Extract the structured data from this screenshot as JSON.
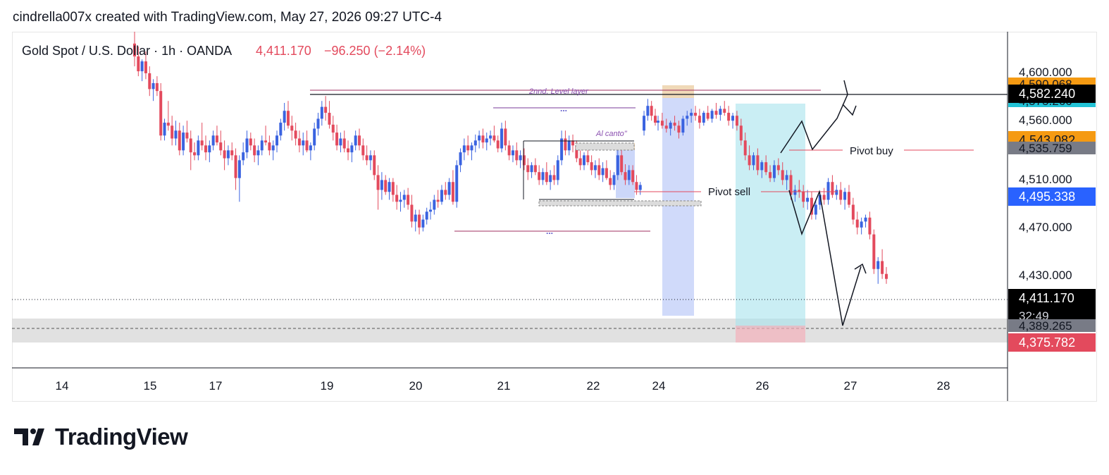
{
  "header": {
    "text": "cindrella007x created with TradingView.com, May 27, 2026 09:27 UTC-4"
  },
  "symbol": {
    "title": "Gold Spot / U.S. Dollar · 1h · OANDA",
    "price": "4,411.170",
    "change": "−96.250 (−2.14%)",
    "change_color": "#e34a5d"
  },
  "colors": {
    "up": "#3a63e0",
    "down": "#e34a5d",
    "axis_text": "#131722"
  },
  "brand": {
    "name": "TradingView",
    "icon": "tradingview-logo-icon"
  },
  "chart_data": {
    "type": "candlestick",
    "x_labels": [
      "14",
      "15",
      "17",
      "19",
      "20",
      "21",
      "22",
      "24",
      "26",
      "27",
      "28"
    ],
    "y_ticks": [
      "4,600.000",
      "4,560.000",
      "4,510.000",
      "4,470.000",
      "4,430.000"
    ],
    "ylim": [
      4320,
      4660
    ],
    "price_badges": [
      {
        "value": "4,590.068",
        "color": "#f59a12",
        "fg": "#131722",
        "partial": true
      },
      {
        "value": "4,575.266",
        "color": "#22c3d6",
        "fg": "#131722",
        "partial": true
      },
      {
        "value": "4,582.240",
        "color": "#000000",
        "fg": "#ffffff"
      },
      {
        "value": "4,543.082",
        "color": "#f59a12",
        "fg": "#131722"
      },
      {
        "value": "4,535.759",
        "color": "#787b86",
        "fg": "#131722",
        "partial": true
      },
      {
        "value": "4,495.338",
        "color": "#2962ff",
        "fg": "#ffffff"
      },
      {
        "value": "4,411.170",
        "color": "#000000",
        "fg": "#ffffff",
        "countdown": "32:49"
      },
      {
        "value": "4,389.265",
        "color": "#787b86",
        "fg": "#131722",
        "partial": true
      },
      {
        "value": "4,375.782",
        "color": "#e34a5d",
        "fg": "#ffffff"
      }
    ],
    "annotations": {
      "level_layer": "2nnd. Level layer",
      "al_canto": "Al canto\"",
      "pivot_sell": "Pivot sell",
      "pivot_buy": "Pivot buy",
      "dots": "..."
    },
    "candles": [
      [
        4648,
        4660,
        4625,
        4635
      ],
      [
        4635,
        4645,
        4615,
        4620
      ],
      [
        4620,
        4632,
        4610,
        4630
      ],
      [
        4630,
        4640,
        4612,
        4618
      ],
      [
        4618,
        4625,
        4595,
        4602
      ],
      [
        4602,
        4612,
        4590,
        4608
      ],
      [
        4608,
        4615,
        4595,
        4600
      ],
      [
        4600,
        4608,
        4550,
        4555
      ],
      [
        4555,
        4572,
        4550,
        4568
      ],
      [
        4568,
        4590,
        4560,
        4565
      ],
      [
        4565,
        4575,
        4545,
        4552
      ],
      [
        4552,
        4570,
        4545,
        4560
      ],
      [
        4560,
        4568,
        4535,
        4540
      ],
      [
        4540,
        4565,
        4535,
        4558
      ],
      [
        4558,
        4570,
        4548,
        4552
      ],
      [
        4552,
        4560,
        4520,
        4538
      ],
      [
        4538,
        4548,
        4530,
        4535
      ],
      [
        4535,
        4555,
        4530,
        4550
      ],
      [
        4550,
        4568,
        4540,
        4545
      ],
      [
        4545,
        4555,
        4530,
        4538
      ],
      [
        4538,
        4550,
        4528,
        4545
      ],
      [
        4545,
        4560,
        4540,
        4555
      ],
      [
        4555,
        4565,
        4545,
        4548
      ],
      [
        4548,
        4560,
        4535,
        4540
      ],
      [
        4540,
        4550,
        4520,
        4532
      ],
      [
        4532,
        4545,
        4525,
        4540
      ],
      [
        4540,
        4548,
        4530,
        4535
      ],
      [
        4535,
        4542,
        4500,
        4512
      ],
      [
        4512,
        4535,
        4488,
        4530
      ],
      [
        4530,
        4548,
        4525,
        4538
      ],
      [
        4538,
        4560,
        4532,
        4552
      ],
      [
        4552,
        4558,
        4540,
        4545
      ],
      [
        4545,
        4552,
        4528,
        4535
      ],
      [
        4535,
        4545,
        4525,
        4540
      ],
      [
        4540,
        4555,
        4535,
        4550
      ],
      [
        4550,
        4565,
        4545,
        4548
      ],
      [
        4548,
        4555,
        4535,
        4540
      ],
      [
        4540,
        4550,
        4530,
        4545
      ],
      [
        4545,
        4560,
        4538,
        4555
      ],
      [
        4555,
        4572,
        4550,
        4568
      ],
      [
        4568,
        4588,
        4560,
        4580
      ],
      [
        4580,
        4590,
        4562,
        4565
      ],
      [
        4565,
        4575,
        4550,
        4560
      ],
      [
        4560,
        4568,
        4545,
        4552
      ],
      [
        4552,
        4560,
        4538,
        4545
      ],
      [
        4545,
        4558,
        4535,
        4550
      ],
      [
        4550,
        4560,
        4538,
        4540
      ],
      [
        4540,
        4548,
        4530,
        4545
      ],
      [
        4545,
        4568,
        4540,
        4562
      ],
      [
        4562,
        4578,
        4555,
        4572
      ],
      [
        4572,
        4590,
        4565,
        4584
      ],
      [
        4584,
        4595,
        4570,
        4578
      ],
      [
        4578,
        4590,
        4562,
        4566
      ],
      [
        4566,
        4575,
        4550,
        4558
      ],
      [
        4558,
        4566,
        4540,
        4545
      ],
      [
        4545,
        4558,
        4538,
        4552
      ],
      [
        4552,
        4560,
        4538,
        4542
      ],
      [
        4542,
        4550,
        4530,
        4538
      ],
      [
        4538,
        4548,
        4528,
        4545
      ],
      [
        4545,
        4560,
        4540,
        4555
      ],
      [
        4555,
        4562,
        4540,
        4545
      ],
      [
        4545,
        4552,
        4530,
        4535
      ],
      [
        4535,
        4545,
        4525,
        4530
      ],
      [
        4530,
        4540,
        4520,
        4535
      ],
      [
        4535,
        4540,
        4510,
        4515
      ],
      [
        4515,
        4525,
        4480,
        4500
      ],
      [
        4500,
        4518,
        4490,
        4510
      ],
      [
        4510,
        4515,
        4495,
        4498
      ],
      [
        4498,
        4512,
        4490,
        4508
      ],
      [
        4508,
        4512,
        4488,
        4495
      ],
      [
        4495,
        4505,
        4480,
        4488
      ],
      [
        4488,
        4498,
        4478,
        4490
      ],
      [
        4490,
        4500,
        4482,
        4495
      ],
      [
        4495,
        4502,
        4480,
        4485
      ],
      [
        4485,
        4495,
        4462,
        4468
      ],
      [
        4468,
        4480,
        4458,
        4475
      ],
      [
        4475,
        4480,
        4455,
        4462
      ],
      [
        4462,
        4475,
        4458,
        4470
      ],
      [
        4470,
        4482,
        4465,
        4478
      ],
      [
        4478,
        4488,
        4470,
        4480
      ],
      [
        4480,
        4495,
        4475,
        4490
      ],
      [
        4490,
        4500,
        4482,
        4488
      ],
      [
        4488,
        4505,
        4485,
        4500
      ],
      [
        4500,
        4508,
        4490,
        4495
      ],
      [
        4495,
        4512,
        4490,
        4508
      ],
      [
        4508,
        4520,
        4485,
        4488
      ],
      [
        4488,
        4530,
        4482,
        4525
      ],
      [
        4525,
        4542,
        4518,
        4538
      ],
      [
        4538,
        4552,
        4530,
        4545
      ],
      [
        4545,
        4555,
        4535,
        4540
      ],
      [
        4540,
        4548,
        4530,
        4545
      ],
      [
        4545,
        4556,
        4538,
        4550
      ],
      [
        4550,
        4560,
        4542,
        4555
      ],
      [
        4555,
        4562,
        4542,
        4548
      ],
      [
        4548,
        4558,
        4540,
        4552
      ],
      [
        4552,
        4560,
        4545,
        4555
      ],
      [
        4555,
        4565,
        4548,
        4550
      ],
      [
        4550,
        4555,
        4538,
        4542
      ],
      [
        4542,
        4568,
        4538,
        4562
      ],
      [
        4562,
        4570,
        4540,
        4545
      ],
      [
        4545,
        4550,
        4530,
        4535
      ],
      [
        4535,
        4545,
        4528,
        4540
      ],
      [
        4540,
        4548,
        4525,
        4530
      ],
      [
        4530,
        4540,
        4522,
        4535
      ],
      [
        4535,
        4542,
        4520,
        4525
      ],
      [
        4525,
        4532,
        4510,
        4518
      ],
      [
        4518,
        4528,
        4512,
        4525
      ],
      [
        4525,
        4532,
        4515,
        4518
      ],
      [
        4518,
        4525,
        4505,
        4510
      ],
      [
        4510,
        4522,
        4505,
        4518
      ],
      [
        4518,
        4528,
        4505,
        4508
      ],
      [
        4508,
        4520,
        4500,
        4515
      ],
      [
        4515,
        4525,
        4505,
        4510
      ],
      [
        4510,
        4535,
        4505,
        4530
      ],
      [
        4530,
        4560,
        4525,
        4552
      ],
      [
        4552,
        4560,
        4535,
        4540
      ],
      [
        4540,
        4555,
        4535,
        4550
      ],
      [
        4550,
        4556,
        4538,
        4545
      ],
      [
        4545,
        4550,
        4528,
        4532
      ],
      [
        4532,
        4540,
        4520,
        4525
      ],
      [
        4525,
        4538,
        4520,
        4535
      ],
      [
        4535,
        4545,
        4525,
        4528
      ],
      [
        4528,
        4535,
        4515,
        4520
      ],
      [
        4520,
        4530,
        4512,
        4525
      ],
      [
        4525,
        4532,
        4510,
        4515
      ],
      [
        4515,
        4528,
        4508,
        4522
      ],
      [
        4522,
        4530,
        4510,
        4512
      ],
      [
        4512,
        4520,
        4500,
        4505
      ],
      [
        4505,
        4518,
        4500,
        4515
      ],
      [
        4515,
        4540,
        4510,
        4535
      ],
      [
        4535,
        4540,
        4515,
        4518
      ],
      [
        4518,
        4526,
        4505,
        4510
      ],
      [
        4510,
        4525,
        4505,
        4520
      ],
      [
        4520,
        4525,
        4505,
        4508
      ],
      [
        4508,
        4515,
        4495,
        4500
      ],
      [
        4500,
        4508,
        4495,
        4505
      ],
      [
        4560,
        4580,
        4555,
        4575
      ],
      [
        4575,
        4592,
        4570,
        4585
      ],
      [
        4585,
        4590,
        4570,
        4575
      ],
      [
        4575,
        4582,
        4565,
        4568
      ],
      [
        4568,
        4575,
        4560,
        4570
      ],
      [
        4570,
        4578,
        4562,
        4565
      ],
      [
        4565,
        4572,
        4558,
        4562
      ],
      [
        4562,
        4570,
        4555,
        4568
      ],
      [
        4568,
        4575,
        4560,
        4565
      ],
      [
        4565,
        4570,
        4552,
        4558
      ],
      [
        4558,
        4575,
        4555,
        4572
      ],
      [
        4572,
        4580,
        4565,
        4575
      ],
      [
        4575,
        4582,
        4568,
        4578
      ],
      [
        4578,
        4585,
        4570,
        4575
      ],
      [
        4575,
        4582,
        4562,
        4568
      ],
      [
        4568,
        4580,
        4565,
        4578
      ],
      [
        4578,
        4585,
        4570,
        4572
      ],
      [
        4572,
        4582,
        4568,
        4580
      ],
      [
        4580,
        4588,
        4572,
        4576
      ],
      [
        4576,
        4585,
        4570,
        4582
      ],
      [
        4582,
        4590,
        4575,
        4578
      ],
      [
        4578,
        4585,
        4565,
        4570
      ],
      [
        4570,
        4578,
        4562,
        4575
      ],
      [
        4575,
        4580,
        4560,
        4565
      ],
      [
        4565,
        4572,
        4545,
        4550
      ],
      [
        4550,
        4558,
        4530,
        4535
      ],
      [
        4535,
        4545,
        4520,
        4525
      ],
      [
        4525,
        4538,
        4520,
        4535
      ],
      [
        4535,
        4542,
        4515,
        4520
      ],
      [
        4520,
        4530,
        4512,
        4528
      ],
      [
        4528,
        4535,
        4515,
        4518
      ],
      [
        4518,
        4525,
        4508,
        4512
      ],
      [
        4512,
        4530,
        4508,
        4525
      ],
      [
        4525,
        4532,
        4515,
        4520
      ],
      [
        4520,
        4528,
        4505,
        4510
      ],
      [
        4510,
        4520,
        4500,
        4515
      ],
      [
        4515,
        4520,
        4490,
        4495
      ],
      [
        4495,
        4505,
        4488,
        4500
      ],
      [
        4500,
        4510,
        4492,
        4498
      ],
      [
        4498,
        4505,
        4482,
        4488
      ],
      [
        4488,
        4500,
        4480,
        4492
      ],
      [
        4492,
        4498,
        4470,
        4475
      ],
      [
        4475,
        4490,
        4470,
        4485
      ],
      [
        4485,
        4498,
        4480,
        4495
      ],
      [
        4495,
        4502,
        4485,
        4490
      ],
      [
        4490,
        4512,
        4485,
        4508
      ],
      [
        4508,
        4515,
        4492,
        4495
      ],
      [
        4495,
        4505,
        4490,
        4500
      ],
      [
        4500,
        4508,
        4485,
        4490
      ],
      [
        4490,
        4502,
        4480,
        4498
      ],
      [
        4498,
        4505,
        4482,
        4485
      ],
      [
        4485,
        4492,
        4465,
        4470
      ],
      [
        4470,
        4478,
        4455,
        4462
      ],
      [
        4462,
        4472,
        4455,
        4468
      ],
      [
        4468,
        4475,
        4462,
        4472
      ],
      [
        4472,
        4478,
        4450,
        4455
      ],
      [
        4455,
        4460,
        4415,
        4420
      ],
      [
        4420,
        4432,
        4405,
        4428
      ],
      [
        4428,
        4440,
        4410,
        4415
      ],
      [
        4415,
        4422,
        4405,
        4410
      ]
    ]
  }
}
